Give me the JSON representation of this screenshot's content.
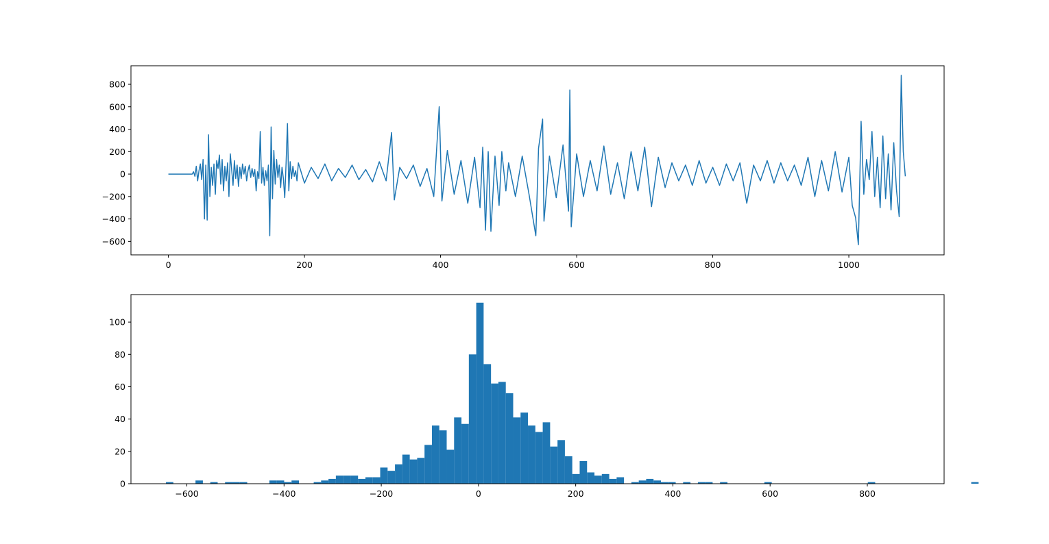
{
  "chart_data": [
    {
      "type": "line",
      "title": "",
      "xlabel": "",
      "ylabel": "",
      "xlim": [
        -55,
        1140
      ],
      "ylim": [
        -720,
        965
      ],
      "x_ticks": [
        0,
        200,
        400,
        600,
        800,
        1000
      ],
      "x_tick_labels": [
        "0",
        "200",
        "400",
        "600",
        "800",
        "1000"
      ],
      "y_ticks": [
        -600,
        -400,
        -200,
        0,
        200,
        400,
        600,
        800
      ],
      "y_tick_labels": [
        "−600",
        "−400",
        "−200",
        "0",
        "200",
        "400",
        "600",
        "800"
      ],
      "grid": false,
      "series_color": "#1f77b4",
      "points": [
        [
          0,
          0
        ],
        [
          35,
          0
        ],
        [
          37,
          20
        ],
        [
          39,
          -20
        ],
        [
          41,
          70
        ],
        [
          43,
          -60
        ],
        [
          45,
          30
        ],
        [
          47,
          90
        ],
        [
          49,
          -50
        ],
        [
          51,
          130
        ],
        [
          53,
          -400
        ],
        [
          55,
          80
        ],
        [
          57,
          -410
        ],
        [
          59,
          350
        ],
        [
          61,
          -200
        ],
        [
          63,
          60
        ],
        [
          65,
          -100
        ],
        [
          67,
          90
        ],
        [
          69,
          -180
        ],
        [
          71,
          120
        ],
        [
          73,
          50
        ],
        [
          75,
          170
        ],
        [
          77,
          -90
        ],
        [
          79,
          130
        ],
        [
          81,
          -150
        ],
        [
          83,
          70
        ],
        [
          85,
          -60
        ],
        [
          87,
          100
        ],
        [
          89,
          -200
        ],
        [
          91,
          180
        ],
        [
          93,
          40
        ],
        [
          95,
          -100
        ],
        [
          97,
          120
        ],
        [
          99,
          -40
        ],
        [
          101,
          80
        ],
        [
          103,
          -110
        ],
        [
          105,
          60
        ],
        [
          107,
          -40
        ],
        [
          109,
          90
        ],
        [
          111,
          0
        ],
        [
          113,
          70
        ],
        [
          115,
          -60
        ],
        [
          117,
          30
        ],
        [
          119,
          80
        ],
        [
          121,
          -30
        ],
        [
          123,
          50
        ],
        [
          125,
          -20
        ],
        [
          127,
          40
        ],
        [
          129,
          -150
        ],
        [
          131,
          20
        ],
        [
          133,
          -40
        ],
        [
          135,
          380
        ],
        [
          137,
          -80
        ],
        [
          139,
          60
        ],
        [
          141,
          -100
        ],
        [
          143,
          30
        ],
        [
          145,
          -60
        ],
        [
          147,
          80
        ],
        [
          149,
          -550
        ],
        [
          151,
          420
        ],
        [
          153,
          -220
        ],
        [
          155,
          210
        ],
        [
          157,
          -90
        ],
        [
          159,
          130
        ],
        [
          161,
          -30
        ],
        [
          163,
          80
        ],
        [
          165,
          -120
        ],
        [
          167,
          60
        ],
        [
          169,
          -40
        ],
        [
          171,
          -210
        ],
        [
          173,
          100
        ],
        [
          175,
          450
        ],
        [
          177,
          -150
        ],
        [
          179,
          110
        ],
        [
          181,
          -40
        ],
        [
          183,
          70
        ],
        [
          185,
          -20
        ],
        [
          187,
          30
        ],
        [
          189,
          -60
        ],
        [
          191,
          100
        ],
        [
          200,
          -80
        ],
        [
          210,
          60
        ],
        [
          220,
          -40
        ],
        [
          230,
          90
        ],
        [
          240,
          -60
        ],
        [
          250,
          50
        ],
        [
          260,
          -30
        ],
        [
          270,
          80
        ],
        [
          280,
          -50
        ],
        [
          290,
          40
        ],
        [
          300,
          -70
        ],
        [
          310,
          110
        ],
        [
          320,
          -60
        ],
        [
          328,
          370
        ],
        [
          332,
          -230
        ],
        [
          340,
          60
        ],
        [
          350,
          -40
        ],
        [
          360,
          80
        ],
        [
          370,
          -110
        ],
        [
          380,
          50
        ],
        [
          390,
          -200
        ],
        [
          398,
          600
        ],
        [
          402,
          -240
        ],
        [
          410,
          210
        ],
        [
          420,
          -180
        ],
        [
          430,
          120
        ],
        [
          440,
          -260
        ],
        [
          450,
          150
        ],
        [
          458,
          -300
        ],
        [
          462,
          240
        ],
        [
          466,
          -500
        ],
        [
          470,
          200
        ],
        [
          474,
          -510
        ],
        [
          480,
          160
        ],
        [
          486,
          -280
        ],
        [
          490,
          200
        ],
        [
          496,
          -150
        ],
        [
          500,
          100
        ],
        [
          510,
          -200
        ],
        [
          520,
          160
        ],
        [
          530,
          -180
        ],
        [
          540,
          -550
        ],
        [
          544,
          230
        ],
        [
          550,
          490
        ],
        [
          552,
          -420
        ],
        [
          560,
          160
        ],
        [
          570,
          -210
        ],
        [
          580,
          260
        ],
        [
          588,
          -330
        ],
        [
          590,
          750
        ],
        [
          592,
          -470
        ],
        [
          600,
          180
        ],
        [
          610,
          -200
        ],
        [
          620,
          120
        ],
        [
          630,
          -150
        ],
        [
          640,
          250
        ],
        [
          650,
          -180
        ],
        [
          660,
          100
        ],
        [
          670,
          -220
        ],
        [
          680,
          200
        ],
        [
          690,
          -150
        ],
        [
          700,
          240
        ],
        [
          710,
          -290
        ],
        [
          720,
          150
        ],
        [
          730,
          -120
        ],
        [
          740,
          100
        ],
        [
          750,
          -60
        ],
        [
          760,
          80
        ],
        [
          770,
          -100
        ],
        [
          780,
          120
        ],
        [
          790,
          -80
        ],
        [
          800,
          60
        ],
        [
          810,
          -100
        ],
        [
          820,
          90
        ],
        [
          830,
          -60
        ],
        [
          840,
          100
        ],
        [
          850,
          -260
        ],
        [
          860,
          80
        ],
        [
          870,
          -60
        ],
        [
          880,
          120
        ],
        [
          890,
          -80
        ],
        [
          900,
          100
        ],
        [
          910,
          -60
        ],
        [
          920,
          80
        ],
        [
          930,
          -100
        ],
        [
          940,
          150
        ],
        [
          950,
          -200
        ],
        [
          960,
          120
        ],
        [
          970,
          -150
        ],
        [
          980,
          200
        ],
        [
          990,
          -160
        ],
        [
          1000,
          150
        ],
        [
          1005,
          -280
        ],
        [
          1010,
          -390
        ],
        [
          1014,
          -630
        ],
        [
          1018,
          470
        ],
        [
          1022,
          -180
        ],
        [
          1026,
          130
        ],
        [
          1030,
          -50
        ],
        [
          1034,
          380
        ],
        [
          1038,
          -200
        ],
        [
          1042,
          150
        ],
        [
          1046,
          -300
        ],
        [
          1050,
          340
        ],
        [
          1054,
          -220
        ],
        [
          1058,
          180
        ],
        [
          1062,
          -320
        ],
        [
          1066,
          280
        ],
        [
          1070,
          -140
        ],
        [
          1074,
          -380
        ],
        [
          1077,
          880
        ],
        [
          1080,
          200
        ],
        [
          1083,
          -20
        ]
      ]
    },
    {
      "type": "bar",
      "title": "",
      "xlabel": "",
      "ylabel": "",
      "xlim": [
        -715,
        958
      ],
      "ylim": [
        0,
        117
      ],
      "x_ticks": [
        -600,
        -400,
        -200,
        0,
        200,
        400,
        600,
        800
      ],
      "x_tick_labels": [
        "−600",
        "−400",
        "−200",
        "0",
        "200",
        "400",
        "600",
        "800"
      ],
      "y_ticks": [
        0,
        20,
        40,
        60,
        80,
        100
      ],
      "y_tick_labels": [
        "0",
        "20",
        "40",
        "60",
        "80",
        "100"
      ],
      "grid": false,
      "series_color": "#1f77b4",
      "bin_start": -643,
      "bin_width": 15.2,
      "counts": [
        1,
        0,
        0,
        0,
        2,
        0,
        1,
        0,
        1,
        1,
        1,
        0,
        0,
        0,
        2,
        2,
        1,
        2,
        0,
        0,
        1,
        2,
        3,
        5,
        5,
        5,
        3,
        4,
        4,
        10,
        8,
        12,
        18,
        15,
        16,
        24,
        36,
        33,
        21,
        41,
        37,
        80,
        112,
        74,
        62,
        63,
        56,
        41,
        44,
        36,
        32,
        38,
        23,
        27,
        17,
        6,
        14,
        7,
        5,
        6,
        3,
        4,
        0,
        1,
        2,
        3,
        2,
        1,
        1,
        0,
        1,
        0,
        1,
        1,
        0,
        1,
        0,
        0,
        0,
        0,
        0,
        1,
        0,
        0,
        0,
        0,
        0,
        0,
        0,
        0,
        0,
        0,
        0,
        0,
        0,
        1,
        0,
        0,
        0,
        0,
        0,
        0,
        0,
        0,
        0,
        0,
        0,
        0,
        0,
        1
      ]
    }
  ]
}
